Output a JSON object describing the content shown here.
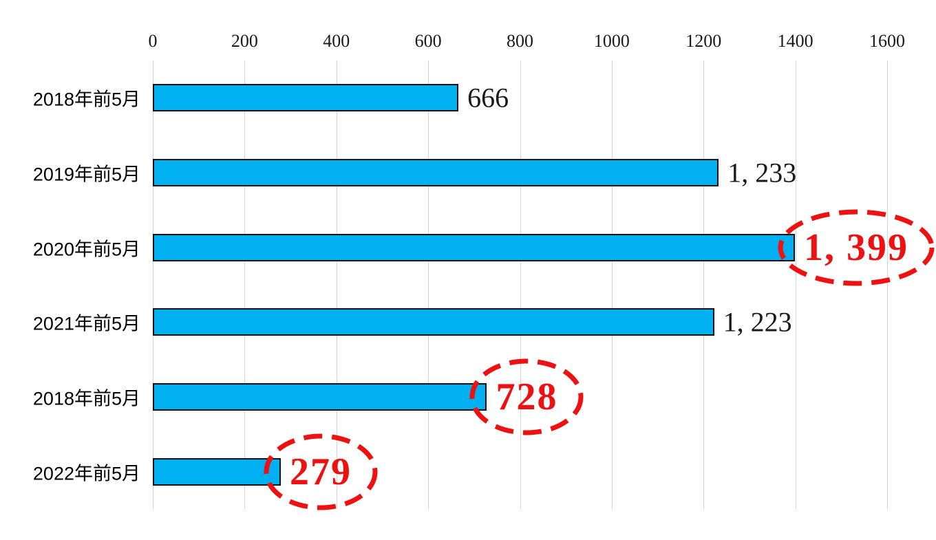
{
  "chart_data": {
    "type": "bar",
    "orientation": "horizontal",
    "title": "",
    "xlabel": "",
    "ylabel": "",
    "xlim": [
      0,
      1600
    ],
    "tick_interval": 200,
    "x_tick_labels": [
      "0",
      "200",
      "400",
      "600",
      "800",
      "1000",
      "1200",
      "1400",
      "1600"
    ],
    "categories": [
      "2018年前5月",
      "2019年前5月",
      "2020年前5月",
      "2021年前5月",
      "2018年前5月",
      "2022年前5月"
    ],
    "values": [
      666,
      1233,
      1399,
      1223,
      728,
      279
    ],
    "value_labels": [
      "666",
      "1, 233",
      "1, 399",
      "1, 223",
      "728",
      "279"
    ],
    "highlighted": [
      false,
      false,
      true,
      false,
      true,
      true
    ],
    "grid": true,
    "legend_position": "none",
    "annotation_style": "red-dashed-ellipse"
  },
  "colors": {
    "bar_fill": "#00b0f0",
    "bar_border": "#101010",
    "gridline": "#d4d4d4",
    "text": "#1a1a1a",
    "highlight_red": "#ee1111",
    "background": "#ffffff"
  }
}
